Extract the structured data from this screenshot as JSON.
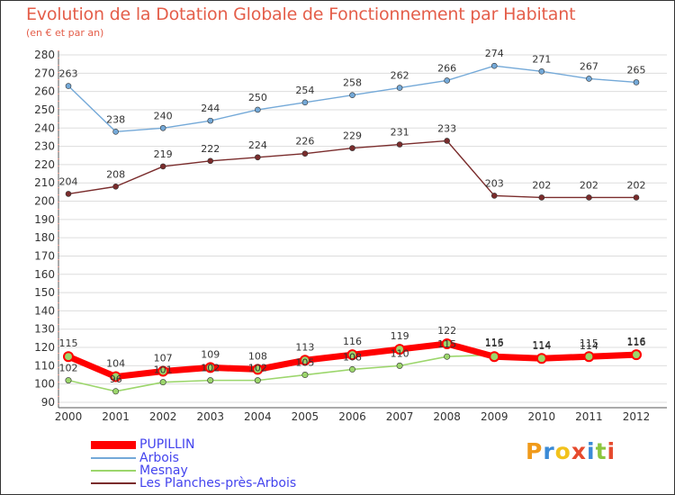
{
  "header": {
    "title": "Evolution de la Dotation Globale de Fonctionnement par Habitant",
    "subtitle": "(en € et par an)"
  },
  "logo": {
    "text": "Proxiti",
    "colors": [
      "#f09a1a",
      "#3a8ad6",
      "#f2c21c",
      "#e64a2e",
      "#3a8ad6",
      "#8cc63f",
      "#e64a2e"
    ]
  },
  "colors": {
    "title": "#e45e4a",
    "axis": "#555555",
    "grid": "#dddddd",
    "tick_text": "#333333",
    "legend_text": "#4444ee"
  },
  "chart_data": {
    "type": "line",
    "title": "Evolution de la Dotation Globale de Fonctionnement par Habitant",
    "subtitle": "(en € et par an)",
    "x": [
      "2000",
      "2001",
      "2002",
      "2003",
      "2004",
      "2005",
      "2006",
      "2007",
      "2008",
      "2009",
      "2010",
      "2011",
      "2012"
    ],
    "ylim": [
      90,
      280
    ],
    "yticks": [
      90,
      100,
      110,
      120,
      130,
      140,
      150,
      160,
      170,
      180,
      190,
      200,
      210,
      220,
      230,
      240,
      250,
      260,
      270,
      280
    ],
    "grid": "horizontal",
    "legend_position": "bottom-left",
    "series": [
      {
        "name": "Arbois",
        "color": "#74a9d8",
        "values": [
          263,
          238,
          240,
          244,
          250,
          254,
          258,
          262,
          266,
          274,
          271,
          267,
          265
        ],
        "labels": [
          "263",
          "238",
          "240",
          "244",
          "250",
          "254",
          "258",
          "262",
          "266",
          "274",
          "271",
          "267",
          "265"
        ]
      },
      {
        "name": "Les Planches-près-Arbois",
        "color": "#7a2c2c",
        "values": [
          204,
          208,
          219,
          222,
          224,
          226,
          229,
          231,
          233,
          203,
          202,
          202,
          202
        ],
        "labels": [
          "204",
          "208",
          "219",
          "222",
          "224",
          "226",
          "229",
          "231",
          "233",
          "203",
          "202",
          "202",
          "202"
        ]
      },
      {
        "name": "Mesnay",
        "color": "#9cd66c",
        "values": [
          102,
          96,
          101,
          102,
          102,
          105,
          108,
          110,
          115,
          116,
          114,
          114,
          116
        ],
        "labels": [
          "102",
          "96",
          "101",
          "102",
          "102",
          "105",
          "108",
          "110",
          "115",
          "116",
          "114",
          "114",
          "116"
        ]
      },
      {
        "name": "PUPILLIN",
        "color": "#ff0000",
        "values": [
          115,
          104,
          107,
          109,
          108,
          113,
          116,
          119,
          122,
          115,
          114,
          115,
          116
        ],
        "labels": [
          "115",
          "104",
          "107",
          "109",
          "108",
          "113",
          "116",
          "119",
          "122",
          "115",
          "114",
          "115",
          "116"
        ]
      }
    ],
    "legend": [
      "PUPILLIN",
      "Arbois",
      "Mesnay",
      "Les Planches-près-Arbois"
    ]
  }
}
